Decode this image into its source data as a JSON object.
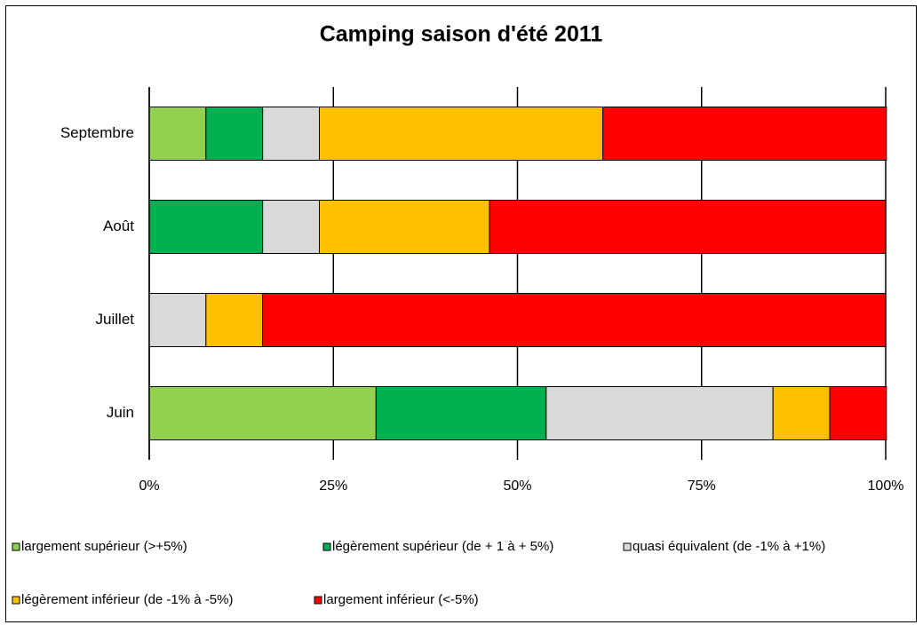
{
  "chart_data": {
    "type": "stacked-bar-horizontal",
    "title": "Camping saison d'été 2011",
    "categories": [
      "Juin",
      "Juillet",
      "Août",
      "Septembre"
    ],
    "series": [
      {
        "name": "largement supérieur (>+5%)",
        "color": "#92d050",
        "values": [
          30.8,
          0,
          0,
          7.7
        ]
      },
      {
        "name": "légèrement supérieur (de + 1 à + 5%)",
        "color": "#00b050",
        "values": [
          23.1,
          0,
          15.4,
          7.7
        ]
      },
      {
        "name": "quasi équivalent (de  -1% à +1%)",
        "color": "#d9d9d9",
        "values": [
          30.8,
          7.7,
          7.7,
          7.7
        ]
      },
      {
        "name": "légèrement inférieur (de -1% à -5%)",
        "color": "#ffc000",
        "values": [
          7.7,
          7.7,
          23.1,
          38.5
        ]
      },
      {
        "name": "largement inférieur (<-5%)",
        "color": "#ff0000",
        "values": [
          7.7,
          84.6,
          53.8,
          38.5
        ]
      }
    ],
    "xlim": [
      0,
      100
    ],
    "xticks": [
      {
        "value": 0,
        "label": "0%"
      },
      {
        "value": 25,
        "label": "25%"
      },
      {
        "value": 50,
        "label": "50%"
      },
      {
        "value": 75,
        "label": "75%"
      },
      {
        "value": 100,
        "label": "100%"
      }
    ],
    "grid": true,
    "legend": "bottom"
  }
}
